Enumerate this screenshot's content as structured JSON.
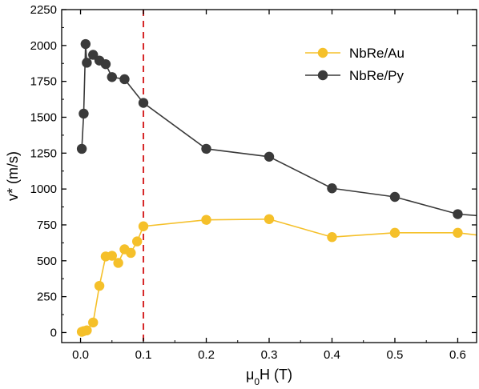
{
  "chart_data": {
    "type": "line",
    "title": "",
    "xlabel": {
      "main": "μ",
      "sub": "0",
      "rest": "H (T)"
    },
    "ylabel": "v* (m/s)",
    "xlim": [
      -0.03,
      0.63
    ],
    "ylim": [
      -70,
      2250
    ],
    "xticks": [
      0.0,
      0.1,
      0.2,
      0.3,
      0.4,
      0.5,
      0.6
    ],
    "xtick_labels": [
      "0.0",
      "0.1",
      "0.2",
      "0.3",
      "0.4",
      "0.5",
      "0.6"
    ],
    "yticks": [
      0,
      250,
      500,
      750,
      1000,
      1250,
      1500,
      1750,
      2000,
      2250
    ],
    "ytick_labels": [
      "0",
      "250",
      "500",
      "750",
      "1000",
      "1250",
      "1500",
      "1750",
      "2000",
      "2250"
    ],
    "grid": false,
    "legend_position": "top-right",
    "vline": {
      "x": 0.1,
      "color": "#d62728",
      "style": "dashed"
    },
    "series": [
      {
        "name": "NbRe/Au",
        "color": "#f5c02a",
        "line_color": "#f5c02a",
        "x": [
          0.002,
          0.005,
          0.01,
          0.02,
          0.03,
          0.04,
          0.05,
          0.06,
          0.07,
          0.08,
          0.09,
          0.1,
          0.2,
          0.3,
          0.4,
          0.5,
          0.6,
          0.63
        ],
        "y": [
          5,
          10,
          15,
          70,
          325,
          530,
          535,
          485,
          580,
          555,
          635,
          740,
          785,
          790,
          665,
          695,
          695,
          680
        ],
        "markers_visible": 17
      },
      {
        "name": "NbRe/Py",
        "color": "#3a3a3a",
        "line_color": "#3a3a3a",
        "x": [
          0.002,
          0.005,
          0.008,
          0.01,
          0.02,
          0.03,
          0.04,
          0.05,
          0.07,
          0.1,
          0.2,
          0.3,
          0.4,
          0.5,
          0.6,
          0.63
        ],
        "y": [
          1280,
          1525,
          2010,
          1880,
          1935,
          1895,
          1870,
          1780,
          1765,
          1600,
          1280,
          1225,
          1005,
          945,
          825,
          815
        ],
        "markers_visible": 15
      }
    ]
  }
}
